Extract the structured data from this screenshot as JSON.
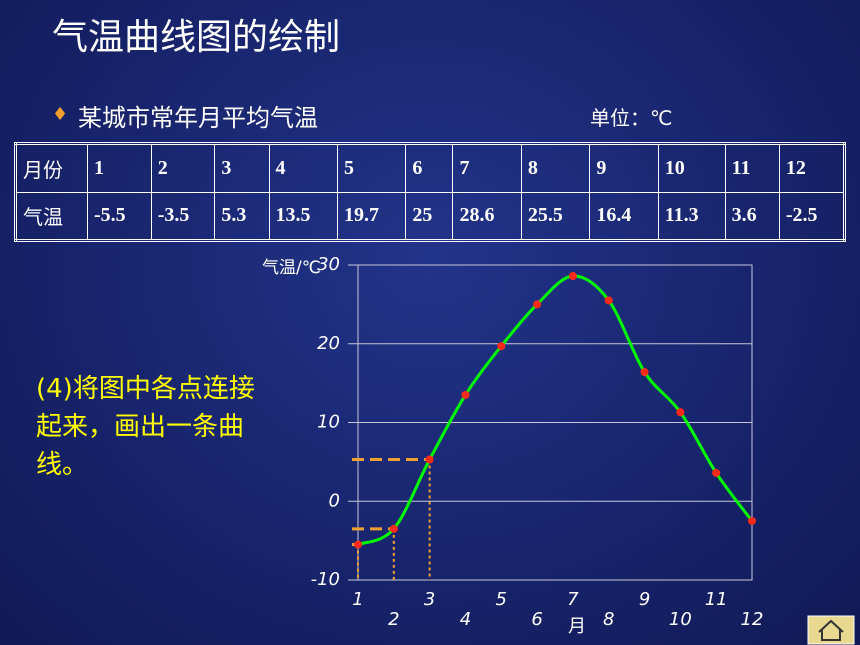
{
  "header": {
    "title": "气温曲线图的绘制",
    "subtitle": "某城市常年月平均气温",
    "unit": "单位：℃"
  },
  "table": {
    "row_labels": [
      "月份",
      "气温"
    ]
  },
  "annotation": "(4)将图中各点连接起来，画出一条曲线。",
  "chart_data": {
    "type": "line",
    "y_label": "气温/℃",
    "x_label": "月",
    "categories": [
      "1",
      "2",
      "3",
      "4",
      "5",
      "6",
      "7",
      "8",
      "9",
      "10",
      "11",
      "12"
    ],
    "series": [
      {
        "name": "气温",
        "color": "#00ff00",
        "marker_color": "#ff2a1a",
        "values": [
          -5.5,
          -3.5,
          5.3,
          13.5,
          19.7,
          25,
          28.6,
          25.5,
          16.4,
          11.3,
          3.6,
          -2.5
        ]
      }
    ],
    "ylim": [
      -10,
      30
    ],
    "yticks": [
      -10,
      0,
      10,
      20,
      30
    ],
    "grid": true
  }
}
